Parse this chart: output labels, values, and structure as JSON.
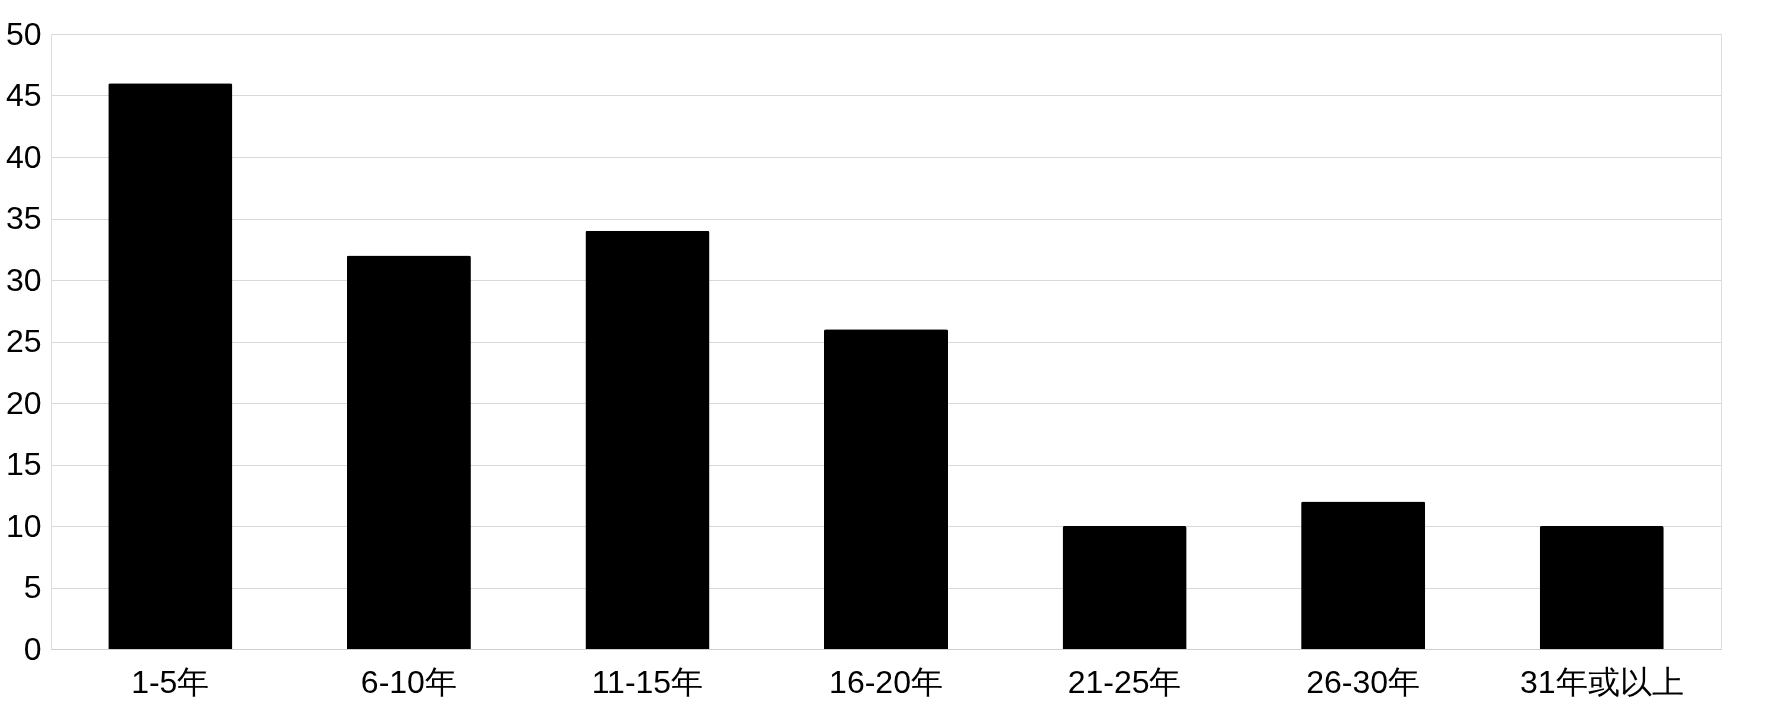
{
  "chart_data": {
    "type": "bar",
    "categories": [
      "1-5年",
      "6-10年",
      "11-15年",
      "16-20年",
      "21-25年",
      "26-30年",
      "31年或以上"
    ],
    "values": [
      46,
      32,
      34,
      26,
      10,
      12,
      10
    ],
    "color": "#000000",
    "ylim": [
      0,
      50
    ],
    "yticks": [
      0,
      5,
      10,
      15,
      20,
      25,
      30,
      35,
      40,
      45,
      50
    ],
    "grid": "y"
  }
}
